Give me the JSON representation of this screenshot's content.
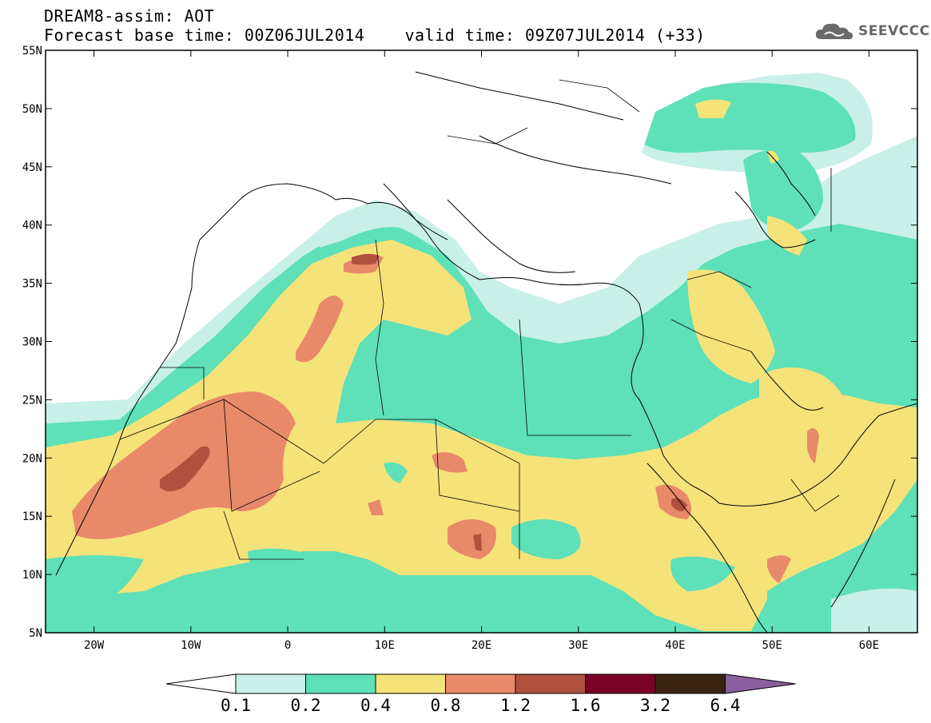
{
  "header": {
    "line1": "DREAM8-assim: AOT",
    "line2": "Forecast base time: 00Z06JUL2014    valid time: 09Z07JUL2014 (+33)"
  },
  "logo": {
    "text": "SEEVCCC",
    "icon": "cloud-icon"
  },
  "map": {
    "lon_range": [
      -25,
      65
    ],
    "lat_range": [
      5,
      55
    ],
    "lat_ticks": [
      "5N",
      "10N",
      "15N",
      "20N",
      "25N",
      "30N",
      "35N",
      "40N",
      "45N",
      "50N",
      "55N"
    ],
    "lon_ticks": [
      "20W",
      "10W",
      "0",
      "10E",
      "20E",
      "30E",
      "40E",
      "50E",
      "60E"
    ]
  },
  "colorbar": {
    "labels": [
      "0.1",
      "0.2",
      "0.4",
      "0.8",
      "1.2",
      "1.6",
      "3.2",
      "6.4"
    ],
    "colors": [
      "#ffffff",
      "#c8f0e8",
      "#5ee0b8",
      "#f5e37a",
      "#e8896a",
      "#b0503f",
      "#7a0025",
      "#3a2410",
      "#8a5fa0"
    ]
  },
  "colors": {
    "ocean_land_clear": "#ffffff",
    "level_0_1": "#c8f0e8",
    "level_0_2": "#5ee0b8",
    "level_0_4": "#f5e37a",
    "level_0_8": "#e8896a",
    "level_1_2": "#b0503f"
  }
}
